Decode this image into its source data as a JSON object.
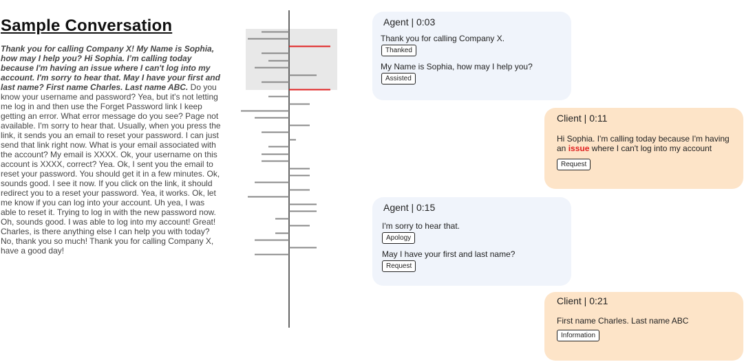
{
  "title": "Sample Conversation",
  "transcript": {
    "highlighted": "Thank you for calling Company X! My Name is Sophia, how may I help you? Hi Sophia. I’m calling today because I'm having an issue where I can't log into my account. I'm sorry to hear that. May I have your first and last name? First name Charles. Last name ABC.",
    "rest": " Do you know your username and password? Yea, but it's not letting me log in and then use the Forget Password link I keep getting an error. What error message do you see? Page not available. I'm sorry to hear that. Usually, when you press the link, it sends you an email to reset your password. I can just send that link right now. What is your email associated with the account? My email is XXXX. Ok, your username on this account is XXXX, correct? Yea. Ok, I sent you the email to reset your password. You should get it in a few minutes. Ok, sounds good. I see it now. If you click on the link, it should redirect you to a reset your password. Yea, it works. Ok, let me know if you can log into your account. Uh yea, I was able to reset it. Trying to log in with the new password now. Oh, sounds good. I was able to log into my account! Great! Charles, is there anything else I can help you with today? No, thank you so much! Thank you for calling Company X, have a good day!"
  },
  "timeline": {
    "colors": {
      "axis": "#666666",
      "tick": "#888888",
      "highlight": "#e02020",
      "window": "#e8e8e8"
    },
    "ticks": [
      {
        "side": "left",
        "len": 40,
        "red": false
      },
      {
        "side": "left",
        "len": 60,
        "red": false
      },
      {
        "side": "right",
        "len": 60,
        "red": true
      },
      {
        "side": "left",
        "len": 40,
        "red": false
      },
      {
        "side": "left",
        "len": 30,
        "red": false
      },
      {
        "side": "left",
        "len": 50,
        "red": false
      },
      {
        "side": "right",
        "len": 40,
        "red": false
      },
      {
        "side": "left",
        "len": 40,
        "red": false
      },
      {
        "side": "right",
        "len": 60,
        "red": true
      },
      {
        "side": "left",
        "len": 30,
        "red": false
      },
      {
        "side": "right",
        "len": 30,
        "red": false
      },
      {
        "side": "left",
        "len": 70,
        "red": false
      },
      {
        "side": "left",
        "len": 50,
        "red": false
      },
      {
        "side": "right",
        "len": 30,
        "red": false
      },
      {
        "side": "left",
        "len": 40,
        "red": false
      },
      {
        "side": "right",
        "len": 10,
        "red": false
      },
      {
        "side": "left",
        "len": 30,
        "red": false
      },
      {
        "side": "left",
        "len": 40,
        "red": false
      },
      {
        "side": "left",
        "len": 40,
        "red": false
      },
      {
        "side": "right",
        "len": 30,
        "red": false
      },
      {
        "side": "right",
        "len": 30,
        "red": false
      },
      {
        "side": "left",
        "len": 50,
        "red": false
      },
      {
        "side": "right",
        "len": 30,
        "red": false
      },
      {
        "side": "left",
        "len": 60,
        "red": false
      },
      {
        "side": "right",
        "len": 40,
        "red": false
      },
      {
        "side": "right",
        "len": 40,
        "red": false
      },
      {
        "side": "left",
        "len": 20,
        "red": false
      },
      {
        "side": "right",
        "len": 30,
        "red": false
      },
      {
        "side": "left",
        "len": 20,
        "red": false
      },
      {
        "side": "left",
        "len": 50,
        "red": false
      },
      {
        "side": "right",
        "len": 40,
        "red": false
      },
      {
        "side": "left",
        "len": 50,
        "red": false
      }
    ]
  },
  "messages": {
    "m1": {
      "header": "Agent | 0:03",
      "line1": "Thank you for calling Company X.",
      "tag1": "Thanked",
      "line2": "My Name is Sophia, how may I help you?",
      "tag2": "Assisted"
    },
    "m2": {
      "header": "Client | 0:11",
      "pre": "Hi Sophia. I'm calling today because I'm having an ",
      "issue": "issue",
      "post": " where I can't log into my account",
      "tag1": "Request"
    },
    "m3": {
      "header": "Agent | 0:15",
      "line1": "I'm sorry to hear that.",
      "tag1": "Apology",
      "line2": "May I have your first and last name?",
      "tag2": "Request"
    },
    "m4": {
      "header": "Client | 0:21",
      "line1": "First name Charles. Last name ABC",
      "tag1": "Information"
    }
  }
}
